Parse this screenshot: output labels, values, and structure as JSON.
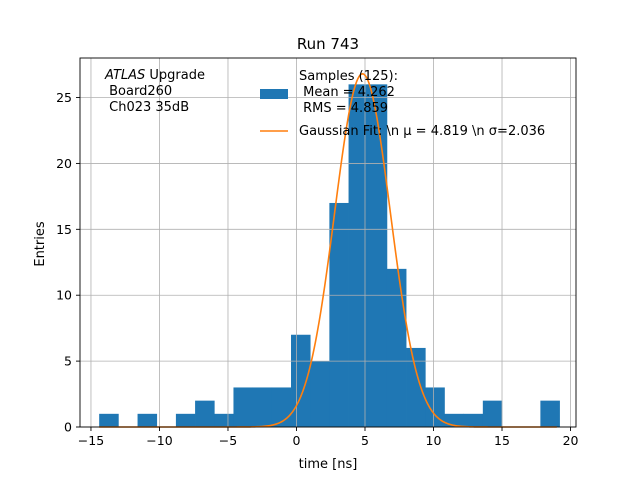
{
  "chart_data": {
    "type": "bar",
    "title": "Run 743",
    "xlabel": "time [ns]",
    "ylabel": "Entries",
    "xlim": [
      -15.8,
      20.4
    ],
    "ylim": [
      0,
      28
    ],
    "xticks": [
      -15,
      -10,
      -5,
      0,
      5,
      10,
      15,
      20
    ],
    "xtick_labels": [
      "−15",
      "−10",
      "−5",
      "0",
      "5",
      "10",
      "15",
      "20"
    ],
    "yticks": [
      0,
      5,
      10,
      15,
      20,
      25
    ],
    "ytick_labels": [
      "0",
      "5",
      "10",
      "15",
      "20",
      "25"
    ],
    "grid": true,
    "bin_width": 1.396,
    "bins": [
      {
        "x0": -14.4,
        "value": 1
      },
      {
        "x0": -13.0,
        "value": 0
      },
      {
        "x0": -11.6,
        "value": 1
      },
      {
        "x0": -10.2,
        "value": 0
      },
      {
        "x0": -8.8,
        "value": 1
      },
      {
        "x0": -7.4,
        "value": 2
      },
      {
        "x0": -6.0,
        "value": 1
      },
      {
        "x0": -4.6,
        "value": 3
      },
      {
        "x0": -3.2,
        "value": 3
      },
      {
        "x0": -1.8,
        "value": 3
      },
      {
        "x0": -0.4,
        "value": 7
      },
      {
        "x0": 1.0,
        "value": 5
      },
      {
        "x0": 2.4,
        "value": 17
      },
      {
        "x0": 3.8,
        "value": 26
      },
      {
        "x0": 5.2,
        "value": 26
      },
      {
        "x0": 6.6,
        "value": 12
      },
      {
        "x0": 8.0,
        "value": 6
      },
      {
        "x0": 9.4,
        "value": 3
      },
      {
        "x0": 10.8,
        "value": 1
      },
      {
        "x0": 12.2,
        "value": 1
      },
      {
        "x0": 13.6,
        "value": 2
      },
      {
        "x0": 15.0,
        "value": 0
      },
      {
        "x0": 16.4,
        "value": 0
      },
      {
        "x0": 17.8,
        "value": 2
      }
    ],
    "fit": {
      "type": "gaussian",
      "mu": 4.819,
      "sigma": 2.036,
      "amplitude": 26.8
    },
    "colors": {
      "hist": "#1f77b4",
      "fit": "#ff7f0e",
      "grid": "#b0b0b0"
    },
    "legend_placement": "top-right",
    "annotation_lines": [
      "Upgrade",
      " Board260",
      " Ch023 35dB"
    ],
    "annotation_italic": "ATLAS",
    "legend": {
      "hist_lines": [
        "Samples (125):",
        " Mean = 4.262",
        " RMS = 4.859"
      ],
      "fit_label": "Gaussian Fit: \\n μ = 4.819 \\n σ=2.036"
    }
  }
}
